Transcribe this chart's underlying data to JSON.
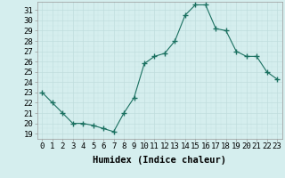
{
  "x": [
    0,
    1,
    2,
    3,
    4,
    5,
    6,
    7,
    8,
    9,
    10,
    11,
    12,
    13,
    14,
    15,
    16,
    17,
    18,
    19,
    20,
    21,
    22,
    23
  ],
  "y": [
    23,
    22,
    21,
    20,
    20,
    19.8,
    19.5,
    19.2,
    21,
    22.5,
    25.8,
    26.5,
    26.8,
    28,
    30.5,
    31.5,
    31.5,
    29.2,
    29,
    27,
    26.5,
    26.5,
    25,
    24.3
  ],
  "xlim": [
    -0.5,
    23.5
  ],
  "ylim": [
    18.5,
    31.8
  ],
  "yticks": [
    19,
    20,
    21,
    22,
    23,
    24,
    25,
    26,
    27,
    28,
    29,
    30,
    31
  ],
  "xtick_labels": [
    "0",
    "1",
    "2",
    "3",
    "4",
    "5",
    "6",
    "7",
    "8",
    "9",
    "10",
    "11",
    "12",
    "13",
    "14",
    "15",
    "16",
    "17",
    "18",
    "19",
    "20",
    "21",
    "22",
    "23"
  ],
  "xlabel": "Humidex (Indice chaleur)",
  "line_color": "#1a7060",
  "marker_color": "#1a7060",
  "bg_color": "#d5eeee",
  "grid_major_color": "#c0dddd",
  "grid_minor_color": "#c8e5e5",
  "tick_fontsize": 6.5,
  "label_fontsize": 7.5
}
